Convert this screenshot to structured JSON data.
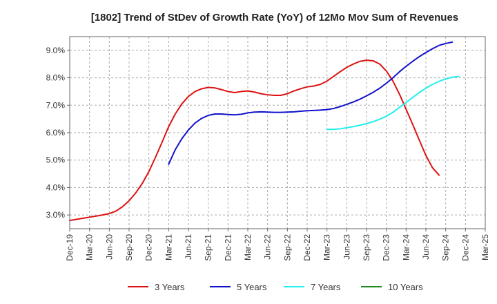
{
  "chart_data": {
    "type": "line",
    "title": "[1802]  Trend of StDev of Growth Rate (YoY) of 12Mo Mov Sum of Revenues",
    "xlabel": "",
    "ylabel": "",
    "x_start": "2019-12",
    "x_end": "2025-03",
    "ylim": [
      2.5,
      9.5
    ],
    "y_ticks": [
      3.0,
      4.0,
      5.0,
      6.0,
      7.0,
      8.0,
      9.0
    ],
    "y_tick_labels": [
      "3.0%",
      "4.0%",
      "5.0%",
      "6.0%",
      "7.0%",
      "8.0%",
      "9.0%"
    ],
    "x_tick_labels": [
      "Dec-19",
      "Mar-20",
      "Jun-20",
      "Sep-20",
      "Dec-20",
      "Mar-21",
      "Jun-21",
      "Sep-21",
      "Dec-21",
      "Mar-22",
      "Jun-22",
      "Sep-22",
      "Dec-22",
      "Mar-23",
      "Jun-23",
      "Sep-23",
      "Dec-23",
      "Mar-24",
      "Jun-24",
      "Sep-24",
      "Dec-24",
      "Mar-25"
    ],
    "grid": true,
    "legend_position": "bottom",
    "series": [
      {
        "name": "3 Years",
        "color": "#dd1111",
        "start_month_index": 0,
        "values": [
          2.8,
          2.84,
          2.88,
          2.92,
          2.96,
          3.0,
          3.05,
          3.14,
          3.3,
          3.52,
          3.8,
          4.15,
          4.58,
          5.1,
          5.65,
          6.22,
          6.68,
          7.05,
          7.32,
          7.5,
          7.6,
          7.65,
          7.63,
          7.57,
          7.5,
          7.46,
          7.5,
          7.52,
          7.48,
          7.42,
          7.38,
          7.36,
          7.36,
          7.42,
          7.52,
          7.6,
          7.67,
          7.7,
          7.76,
          7.88,
          8.05,
          8.22,
          8.38,
          8.5,
          8.6,
          8.64,
          8.62,
          8.5,
          8.25,
          7.88,
          7.4,
          6.85,
          6.3,
          5.73,
          5.17,
          4.72,
          4.45
        ]
      },
      {
        "name": "5 Years",
        "color": "#1111cc",
        "start_month_index": 15,
        "values": [
          4.85,
          5.38,
          5.78,
          6.1,
          6.35,
          6.52,
          6.63,
          6.68,
          6.68,
          6.66,
          6.65,
          6.67,
          6.72,
          6.75,
          6.76,
          6.75,
          6.74,
          6.74,
          6.75,
          6.76,
          6.78,
          6.8,
          6.81,
          6.82,
          6.84,
          6.88,
          6.95,
          7.03,
          7.12,
          7.22,
          7.34,
          7.47,
          7.62,
          7.8,
          8.0,
          8.22,
          8.42,
          8.6,
          8.77,
          8.92,
          9.06,
          9.18,
          9.25,
          9.3
        ]
      },
      {
        "name": "7 Years",
        "color": "#22eeee",
        "start_month_index": 39,
        "values": [
          6.12,
          6.12,
          6.14,
          6.18,
          6.22,
          6.27,
          6.33,
          6.4,
          6.49,
          6.6,
          6.74,
          6.92,
          7.1,
          7.28,
          7.46,
          7.62,
          7.76,
          7.87,
          7.96,
          8.02,
          8.05
        ]
      },
      {
        "name": "10 Years",
        "color": "#228822",
        "start_month_index": 0,
        "values": []
      }
    ]
  }
}
